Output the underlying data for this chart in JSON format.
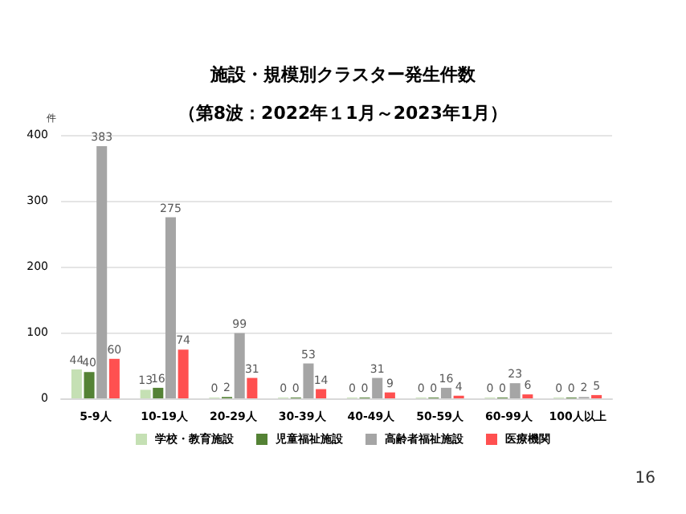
{
  "chart_data": {
    "type": "bar",
    "title": "施設・規模別クラスター発生件数",
    "subtitle": "（第8波：2022年１1月～2023年1月）",
    "ylabel": "件",
    "categories": [
      "5-9人",
      "10-19人",
      "20-29人",
      "30-39人",
      "40-49人",
      "50-59人",
      "60-99人",
      "100人以上"
    ],
    "series": [
      {
        "name": "学校・教育施設",
        "color": "#c5e0b4",
        "values": [
          44,
          13,
          0,
          0,
          0,
          0,
          0,
          0
        ]
      },
      {
        "name": "児童福祉施設",
        "color": "#548235",
        "values": [
          40,
          16,
          2,
          0,
          0,
          0,
          0,
          0
        ]
      },
      {
        "name": "高齢者福祉施設",
        "color": "#a5a5a5",
        "values": [
          383,
          275,
          99,
          53,
          31,
          16,
          23,
          2
        ]
      },
      {
        "name": "医療機関",
        "color": "#ff5050",
        "values": [
          60,
          74,
          31,
          14,
          9,
          4,
          6,
          5
        ]
      }
    ],
    "ylim": [
      0,
      400
    ],
    "yticks": [
      0,
      100,
      200,
      300,
      400
    ],
    "grid": "y",
    "legend": "bottom",
    "data_labels": true,
    "annotations": [
      "16"
    ]
  }
}
